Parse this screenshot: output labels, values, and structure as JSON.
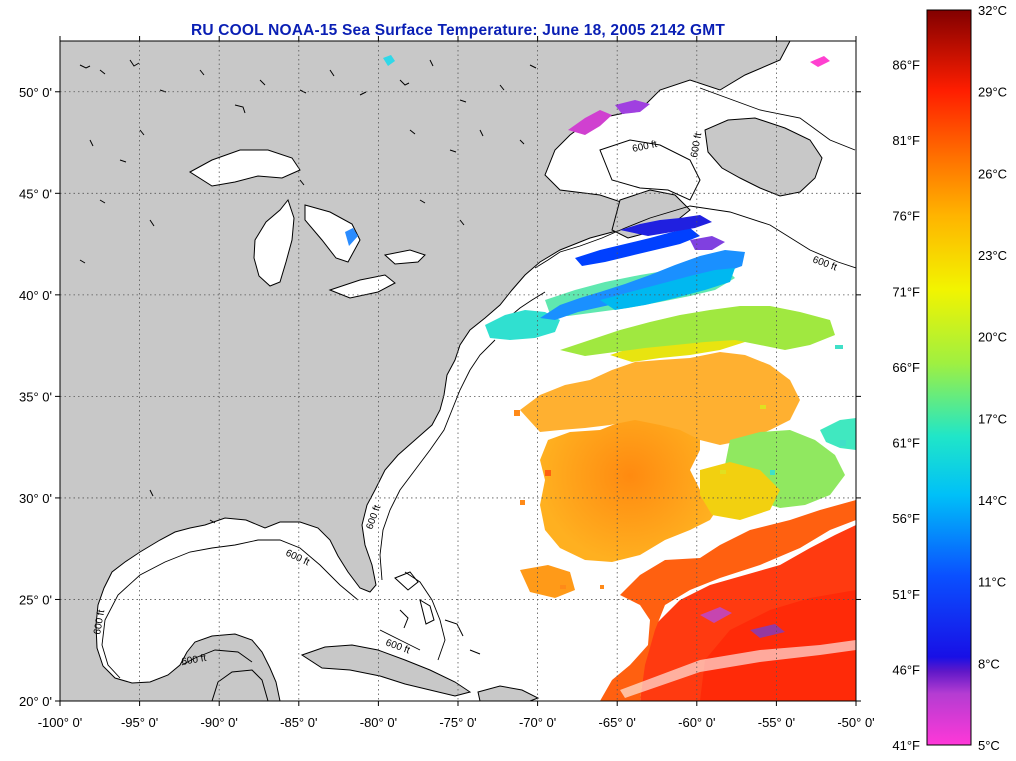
{
  "title": "RU COOL  NOAA-15  Sea Surface Temperature:  June 18, 2005 2142 GMT",
  "map": {
    "lon_range": [
      -100,
      -50
    ],
    "lat_range": [
      20,
      52.5
    ],
    "lon_ticks": [
      {
        "value": -100,
        "label": "-100° 0'"
      },
      {
        "value": -95,
        "label": "-95° 0'"
      },
      {
        "value": -90,
        "label": "-90° 0'"
      },
      {
        "value": -85,
        "label": "-85° 0'"
      },
      {
        "value": -80,
        "label": "-80° 0'"
      },
      {
        "value": -75,
        "label": "-75° 0'"
      },
      {
        "value": -70,
        "label": "-70° 0'"
      },
      {
        "value": -65,
        "label": "-65° 0'"
      },
      {
        "value": -60,
        "label": "-60° 0'"
      },
      {
        "value": -55,
        "label": "-55° 0'"
      },
      {
        "value": -50,
        "label": "-50° 0'"
      }
    ],
    "lat_ticks": [
      {
        "value": 20,
        "label": "20° 0'"
      },
      {
        "value": 25,
        "label": "25° 0'"
      },
      {
        "value": 30,
        "label": "30° 0'"
      },
      {
        "value": 35,
        "label": "35° 0'"
      },
      {
        "value": 40,
        "label": "40° 0'"
      },
      {
        "value": 45,
        "label": "45° 0'"
      },
      {
        "value": 50,
        "label": "50° 0'"
      }
    ],
    "isobath_label": "600 ft",
    "colors": {
      "land": "#c8c8c8",
      "ocean": "#ffffff",
      "coast": "#000000",
      "grid": "#777777"
    }
  },
  "colorbar": {
    "range_c": [
      5,
      32
    ],
    "celsius_labels": [
      "32°C",
      "29°C",
      "26°C",
      "23°C",
      "20°C",
      "17°C",
      "14°C",
      "11°C",
      "8°C",
      "5°C"
    ],
    "fahrenheit_labels": [
      "86°F",
      "81°F",
      "76°F",
      "71°F",
      "66°F",
      "61°F",
      "56°F",
      "51°F",
      "46°F",
      "41°F"
    ],
    "celsius_values": [
      32,
      29,
      26,
      23,
      20,
      17,
      14,
      11,
      8,
      5
    ],
    "fahrenheit_values": [
      86,
      81,
      76,
      71,
      66,
      61,
      56,
      51,
      46,
      41
    ]
  }
}
